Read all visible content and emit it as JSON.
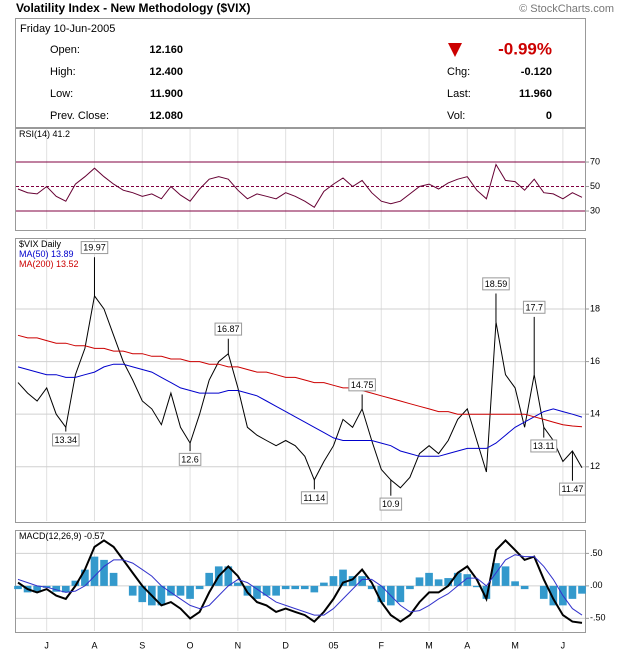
{
  "header": {
    "title": "Volatility Index - New Methodology ($VIX)",
    "credit": "© StockCharts.com"
  },
  "quote": {
    "date": "Friday 10-Jun-2005",
    "left": [
      {
        "label": "Open:",
        "value": "12.160"
      },
      {
        "label": "High:",
        "value": "12.400"
      },
      {
        "label": "Low:",
        "value": "11.900"
      },
      {
        "label": "Prev. Close:",
        "value": "12.080"
      }
    ],
    "change_pct": "-0.99%",
    "right": [
      {
        "label": "Chg:",
        "value": "-0.120"
      },
      {
        "label": "Last:",
        "value": "11.960"
      },
      {
        "label": "Vol:",
        "value": "0"
      }
    ]
  },
  "chart_data": [
    {
      "type": "line",
      "ylim": [
        14.5,
        97.8
      ],
      "yticks": [
        30,
        50,
        70
      ],
      "grid": true,
      "grid_color": "#800040",
      "series": [
        {
          "name": "RSI(14)",
          "show_last": true,
          "color": "#660033",
          "values": [
            48,
            45,
            44,
            50,
            42,
            38,
            52,
            58,
            65,
            58,
            52,
            47,
            45,
            42,
            44,
            40,
            50,
            43,
            38,
            48,
            56,
            58,
            56,
            47,
            40,
            44,
            42,
            40,
            45,
            42,
            38,
            33,
            46,
            52,
            57,
            50,
            55,
            45,
            38,
            36,
            38,
            44,
            50,
            52,
            48,
            53,
            56,
            58,
            47,
            40,
            68,
            55,
            54,
            47,
            56,
            45,
            44,
            40,
            45,
            41.2
          ]
        }
      ]
    },
    {
      "type": "line",
      "ylim": [
        9.9,
        20.7
      ],
      "yticks": [
        12,
        14,
        16,
        18
      ],
      "grid": true,
      "grid_color": "#d0d0d0",
      "series": [
        {
          "name": "$VIX Daily",
          "color": "#000000",
          "values": [
            15.2,
            14.8,
            14.5,
            15.0,
            14.0,
            13.5,
            15.5,
            16.5,
            18.5,
            18.0,
            17.0,
            16.0,
            15.3,
            14.5,
            14.2,
            13.6,
            14.8,
            13.5,
            12.9,
            14.0,
            15.3,
            16.0,
            16.3,
            15.0,
            13.5,
            13.2,
            13.0,
            12.8,
            13.0,
            12.8,
            12.4,
            11.5,
            12.2,
            12.8,
            13.8,
            13.5,
            14.2,
            13.0,
            11.9,
            11.5,
            11.2,
            11.6,
            12.5,
            12.8,
            12.5,
            13.0,
            13.8,
            14.2,
            13.0,
            11.8,
            17.5,
            15.5,
            15.0,
            13.5,
            15.5,
            13.5,
            13.0,
            12.2,
            12.6,
            11.96
          ]
        },
        {
          "name": "MA(50)",
          "show_last": true,
          "color": "#0000cc",
          "values": [
            15.8,
            15.7,
            15.6,
            15.5,
            15.5,
            15.4,
            15.4,
            15.5,
            15.6,
            15.8,
            15.9,
            15.9,
            15.8,
            15.7,
            15.6,
            15.4,
            15.2,
            15.0,
            14.9,
            14.8,
            14.8,
            14.8,
            14.9,
            14.9,
            14.8,
            14.7,
            14.5,
            14.3,
            14.1,
            13.9,
            13.7,
            13.5,
            13.3,
            13.1,
            13.0,
            13.0,
            13.0,
            13.0,
            12.9,
            12.8,
            12.6,
            12.5,
            12.4,
            12.4,
            12.4,
            12.5,
            12.6,
            12.7,
            12.7,
            12.7,
            12.9,
            13.2,
            13.5,
            13.7,
            13.9,
            14.1,
            14.2,
            14.1,
            14.0,
            13.89
          ]
        },
        {
          "name": "MA(200)",
          "show_last": true,
          "color": "#cc0000",
          "values": [
            17.0,
            16.9,
            16.9,
            16.8,
            16.7,
            16.7,
            16.6,
            16.6,
            16.5,
            16.5,
            16.4,
            16.4,
            16.3,
            16.3,
            16.2,
            16.2,
            16.1,
            16.1,
            16.0,
            16.0,
            15.9,
            15.9,
            15.8,
            15.8,
            15.7,
            15.6,
            15.6,
            15.5,
            15.4,
            15.4,
            15.3,
            15.2,
            15.2,
            15.1,
            15.0,
            15.0,
            14.9,
            14.8,
            14.7,
            14.6,
            14.5,
            14.4,
            14.3,
            14.2,
            14.1,
            14.1,
            14.0,
            14.0,
            14.0,
            14.0,
            14.0,
            14.0,
            14.0,
            14.0,
            13.9,
            13.8,
            13.7,
            13.6,
            13.55,
            13.52
          ]
        }
      ],
      "annotations": [
        null,
        null,
        null,
        null,
        null,
        13.34,
        null,
        null,
        19.97,
        null,
        null,
        null,
        null,
        null,
        null,
        null,
        null,
        null,
        12.6,
        null,
        null,
        null,
        16.87,
        null,
        null,
        null,
        null,
        null,
        null,
        null,
        null,
        11.14,
        null,
        null,
        null,
        null,
        14.75,
        null,
        null,
        10.9,
        null,
        null,
        null,
        null,
        null,
        null,
        null,
        null,
        null,
        null,
        18.59,
        null,
        null,
        null,
        17.7,
        13.11,
        null,
        null,
        11.47,
        null
      ]
    },
    {
      "type": "line",
      "ylim": [
        -0.71,
        0.86
      ],
      "yticks": [
        {
          "value": 0.5,
          "label": ".50"
        },
        {
          "value": 0,
          "label": ".00"
        },
        {
          "value": -0.5,
          "label": "-.50"
        }
      ],
      "grid": true,
      "grid_color": "#d0d0d0",
      "categories": [
        null,
        null,
        null,
        "J",
        null,
        null,
        null,
        null,
        "A",
        null,
        null,
        null,
        null,
        "S",
        null,
        null,
        null,
        null,
        "O",
        null,
        null,
        null,
        null,
        "N",
        null,
        null,
        null,
        null,
        "D",
        null,
        null,
        null,
        null,
        "05",
        null,
        null,
        null,
        null,
        "F",
        null,
        null,
        null,
        null,
        "M",
        null,
        null,
        null,
        "A",
        null,
        null,
        null,
        null,
        "M",
        null,
        null,
        null,
        null,
        "J",
        null,
        null
      ],
      "series": [
        {
          "type": "bar",
          "color": "#3399cc",
          "values": [
            -0.05,
            -0.1,
            -0.1,
            -0.03,
            -0.09,
            -0.1,
            0.08,
            0.25,
            0.45,
            0.4,
            0.2,
            0.0,
            -0.15,
            -0.25,
            -0.3,
            -0.3,
            -0.15,
            -0.15,
            -0.2,
            -0.05,
            0.2,
            0.3,
            0.3,
            0.05,
            -0.15,
            -0.2,
            -0.15,
            -0.15,
            -0.05,
            -0.05,
            -0.05,
            -0.1,
            0.05,
            0.15,
            0.25,
            0.15,
            0.15,
            -0.05,
            -0.25,
            -0.3,
            -0.25,
            -0.05,
            0.13,
            0.2,
            0.1,
            0.12,
            0.2,
            0.18,
            -0.02,
            -0.2,
            0.35,
            0.3,
            0.07,
            -0.05,
            0.0,
            -0.2,
            -0.3,
            -0.3,
            -0.2,
            -0.12
          ]
        },
        {
          "name": "MACD(12,26,9)",
          "show_last": true,
          "color": "#000000",
          "width": 2,
          "values": [
            0.05,
            -0.05,
            -0.1,
            -0.05,
            -0.15,
            -0.2,
            0.0,
            0.25,
            0.6,
            0.7,
            0.6,
            0.4,
            0.2,
            0.0,
            -0.15,
            -0.3,
            -0.25,
            -0.35,
            -0.5,
            -0.4,
            -0.1,
            0.15,
            0.3,
            0.15,
            -0.1,
            -0.25,
            -0.3,
            -0.4,
            -0.35,
            -0.4,
            -0.45,
            -0.55,
            -0.4,
            -0.2,
            0.05,
            0.1,
            0.25,
            0.05,
            -0.25,
            -0.45,
            -0.55,
            -0.45,
            -0.25,
            -0.1,
            -0.1,
            0.0,
            0.2,
            0.3,
            0.1,
            -0.2,
            0.55,
            0.7,
            0.55,
            0.4,
            0.45,
            0.1,
            -0.2,
            -0.45,
            -0.55,
            -0.57
          ]
        },
        {
          "color": "#3333cc",
          "values": [
            0.1,
            0.05,
            0.0,
            -0.02,
            -0.06,
            -0.1,
            -0.08,
            0.0,
            0.15,
            0.3,
            0.4,
            0.4,
            0.35,
            0.25,
            0.15,
            0.0,
            -0.1,
            -0.2,
            -0.3,
            -0.35,
            -0.3,
            -0.15,
            0.0,
            0.1,
            0.05,
            -0.05,
            -0.15,
            -0.25,
            -0.3,
            -0.35,
            -0.4,
            -0.45,
            -0.45,
            -0.35,
            -0.2,
            -0.05,
            0.1,
            0.1,
            0.0,
            -0.15,
            -0.3,
            -0.4,
            -0.38,
            -0.3,
            -0.2,
            -0.12,
            0.0,
            0.12,
            0.12,
            0.0,
            0.2,
            0.4,
            0.48,
            0.45,
            0.45,
            0.3,
            0.1,
            -0.15,
            -0.35,
            -0.45
          ]
        }
      ]
    }
  ]
}
